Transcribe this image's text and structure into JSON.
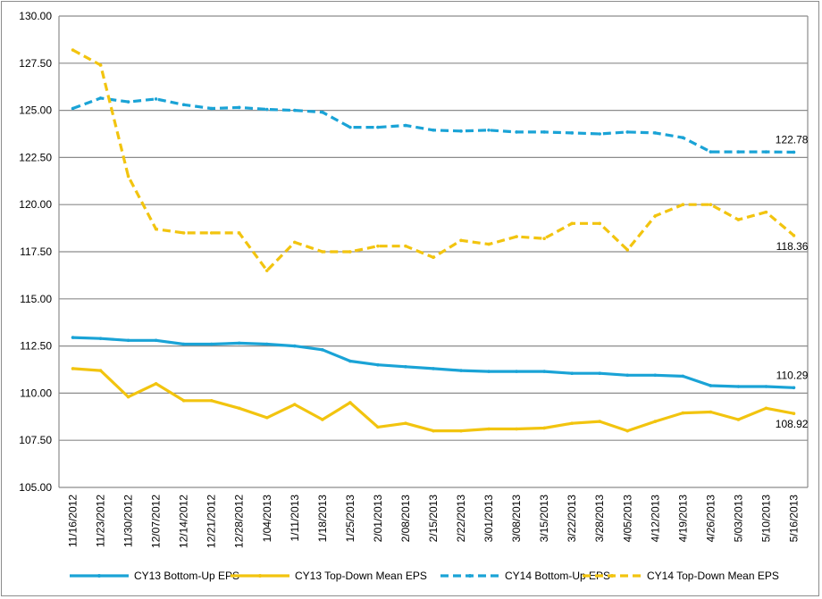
{
  "chart_data": {
    "type": "line",
    "title": "",
    "xlabel": "",
    "ylabel": "",
    "ylim": [
      105,
      130
    ],
    "yticks": [
      "105.00",
      "107.50",
      "110.00",
      "112.50",
      "115.00",
      "117.50",
      "120.00",
      "122.50",
      "125.00",
      "127.50",
      "130.00"
    ],
    "grid": true,
    "legend_position": "bottom",
    "categories": [
      "11/16/2012",
      "11/23/2012",
      "11/30/2012",
      "12/07/2012",
      "12/14/2012",
      "12/21/2012",
      "12/28/2012",
      "1/04/2013",
      "1/11/2013",
      "1/18/2013",
      "1/25/2013",
      "2/01/2013",
      "2/08/2013",
      "2/15/2013",
      "2/22/2013",
      "3/01/2013",
      "3/08/2013",
      "3/15/2013",
      "3/22/2013",
      "3/28/2013",
      "4/05/2013",
      "4/12/2013",
      "4/19/2013",
      "4/26/2013",
      "5/03/2013",
      "5/10/2013",
      "5/16/2013"
    ],
    "series": [
      {
        "name": "CY13 Bottom-Up EPS",
        "color": "#1aa3d6",
        "dashed": false,
        "end_label": "110.29",
        "values": [
          112.95,
          112.9,
          112.8,
          112.8,
          112.6,
          112.6,
          112.65,
          112.6,
          112.5,
          112.3,
          111.7,
          111.5,
          111.4,
          111.3,
          111.2,
          111.15,
          111.15,
          111.15,
          111.05,
          111.05,
          110.95,
          110.95,
          110.9,
          110.4,
          110.35,
          110.35,
          110.29
        ]
      },
      {
        "name": "CY13 Top-Down Mean EPS",
        "color": "#f2c40f",
        "dashed": false,
        "end_label": "108.92",
        "values": [
          111.3,
          111.2,
          109.8,
          110.5,
          109.6,
          109.6,
          109.2,
          108.7,
          109.4,
          108.6,
          109.5,
          108.2,
          108.4,
          108.0,
          108.0,
          108.1,
          108.1,
          108.15,
          108.4,
          108.5,
          108.0,
          108.5,
          108.95,
          109.0,
          108.6,
          109.2,
          108.92
        ]
      },
      {
        "name": "CY14 Bottom-Up EPS",
        "color": "#1aa3d6",
        "dashed": true,
        "end_label": "122.78",
        "values": [
          125.1,
          125.65,
          125.45,
          125.6,
          125.3,
          125.1,
          125.15,
          125.05,
          125.0,
          124.9,
          124.1,
          124.1,
          124.2,
          123.95,
          123.9,
          123.95,
          123.85,
          123.85,
          123.8,
          123.75,
          123.85,
          123.8,
          123.55,
          122.8,
          122.8,
          122.8,
          122.78
        ]
      },
      {
        "name": "CY14 Top-Down Mean EPS",
        "color": "#f2c40f",
        "dashed": true,
        "end_label": "118.36",
        "values": [
          128.2,
          127.4,
          121.5,
          118.7,
          118.5,
          118.5,
          118.5,
          116.5,
          118.0,
          117.5,
          117.5,
          117.8,
          117.8,
          117.2,
          118.1,
          117.9,
          118.3,
          118.2,
          119.0,
          119.0,
          117.6,
          119.4,
          120.0,
          120.0,
          119.2,
          119.6,
          118.36
        ]
      }
    ]
  }
}
